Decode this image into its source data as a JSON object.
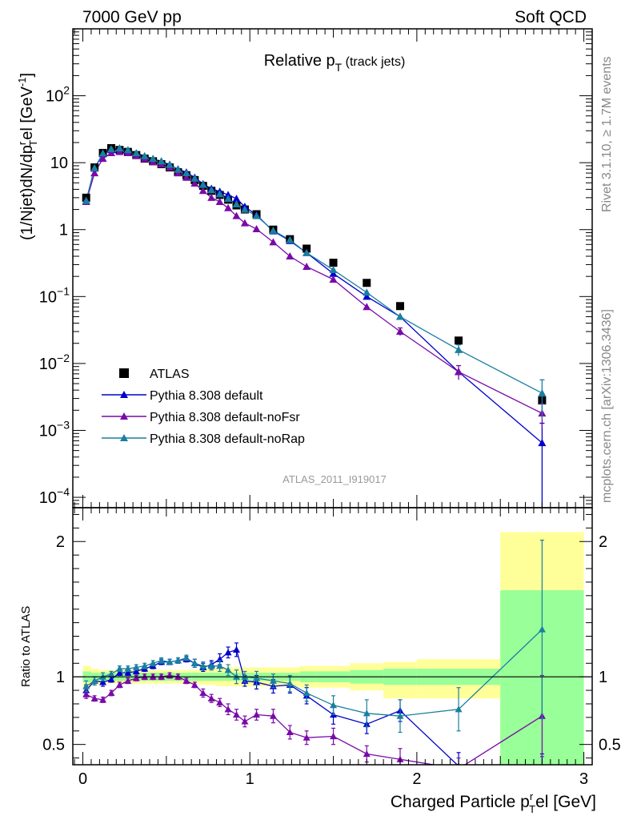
{
  "header": {
    "left": "7000 GeV pp",
    "right": "Soft QCD"
  },
  "side_text": {
    "rivet": "Rivet 3.1.10, ≥ 1.7M events",
    "mcplots": "mcplots.cern.ch [arXiv:1306.3436]"
  },
  "watermark": "ATLAS_2011_I919017",
  "chart_data": [
    {
      "type": "scatter",
      "panel": "main",
      "title": "Relative p",
      "title_sub": "T",
      "title_suffix": " (track jets)",
      "ylabel": "(1/Njet)dN/dp",
      "ylabel_sup": "r",
      "ylabel_sub": "T",
      "ylabel_suffix": "el [GeV",
      "ylabel_unit_sup": "-1",
      "ylabel_close": "]",
      "yscale": "log",
      "xlim": [
        -0.06,
        3.05
      ],
      "ylim": [
        7e-05,
        1000
      ],
      "y_ticks": [
        0.0001,
        0.001,
        0.01,
        0.1,
        1,
        10,
        100
      ],
      "y_tick_labels": [
        {
          "base": "10",
          "exp": "−4"
        },
        {
          "base": "10",
          "exp": "−3"
        },
        {
          "base": "10",
          "exp": "−2"
        },
        {
          "base": "10",
          "exp": "−1"
        },
        {
          "base": "1",
          "exp": ""
        },
        {
          "base": "10",
          "exp": ""
        },
        {
          "base": "10",
          "exp": "2"
        }
      ],
      "legend_position": "bottom-left",
      "series": [
        {
          "name": "ATLAS",
          "color": "#000000",
          "marker": "square",
          "x": [
            0.02,
            0.07,
            0.12,
            0.17,
            0.22,
            0.27,
            0.32,
            0.37,
            0.42,
            0.47,
            0.52,
            0.57,
            0.62,
            0.67,
            0.72,
            0.77,
            0.82,
            0.87,
            0.92,
            0.97,
            1.04,
            1.14,
            1.24,
            1.34,
            1.5,
            1.7,
            1.9,
            2.25,
            2.75
          ],
          "y": [
            3.0,
            8.5,
            14.0,
            16.5,
            15.5,
            14.5,
            13.0,
            11.5,
            10.5,
            9.5,
            8.5,
            7.2,
            6.5,
            5.5,
            4.5,
            3.8,
            3.3,
            2.8,
            2.3,
            2.0,
            1.7,
            1.0,
            0.72,
            0.52,
            0.32,
            0.16,
            0.072,
            0.022,
            0.0028
          ]
        },
        {
          "name": "Pythia 8.308 default",
          "color": "#0000cc",
          "marker": "triangle",
          "x": [
            0.02,
            0.07,
            0.12,
            0.17,
            0.22,
            0.27,
            0.32,
            0.37,
            0.42,
            0.47,
            0.52,
            0.57,
            0.62,
            0.67,
            0.72,
            0.77,
            0.82,
            0.87,
            0.92,
            0.97,
            1.04,
            1.14,
            1.24,
            1.34,
            1.5,
            1.7,
            1.9,
            2.25,
            2.75
          ],
          "y": [
            2.7,
            8.2,
            13.5,
            15.5,
            15.8,
            15.0,
            13.5,
            12.2,
            11.3,
            10.5,
            9.4,
            8.0,
            7.2,
            6.0,
            4.8,
            4.1,
            3.7,
            3.3,
            2.9,
            2.2,
            1.65,
            0.95,
            0.68,
            0.45,
            0.22,
            0.1,
            0.05,
            0.0075,
            0.00065
          ],
          "err": [
            0,
            0,
            0,
            0,
            0,
            0,
            0,
            0,
            0,
            0,
            0,
            0,
            0,
            0,
            0,
            0,
            0,
            0,
            0,
            0,
            0,
            0,
            0,
            0,
            0,
            0,
            0,
            0,
            0.00063
          ]
        },
        {
          "name": "Pythia 8.308 default-noFsr",
          "color": "#7a0aa8",
          "marker": "triangle",
          "x": [
            0.02,
            0.07,
            0.12,
            0.17,
            0.22,
            0.27,
            0.32,
            0.37,
            0.42,
            0.47,
            0.52,
            0.57,
            0.62,
            0.67,
            0.72,
            0.77,
            0.82,
            0.87,
            0.92,
            0.97,
            1.04,
            1.14,
            1.24,
            1.34,
            1.5,
            1.7,
            1.9,
            2.25,
            2.75
          ],
          "y": [
            2.6,
            7.0,
            11.5,
            14.0,
            14.5,
            14.0,
            12.8,
            11.4,
            10.3,
            9.5,
            8.5,
            7.0,
            6.0,
            4.9,
            3.8,
            3.0,
            2.6,
            2.1,
            1.6,
            1.25,
            1.02,
            0.65,
            0.4,
            0.28,
            0.18,
            0.07,
            0.03,
            0.0075,
            0.0018
          ],
          "err": [
            0,
            0,
            0,
            0,
            0,
            0,
            0,
            0,
            0,
            0,
            0,
            0,
            0,
            0,
            0,
            0,
            0,
            0,
            0,
            0,
            0,
            0,
            0,
            0,
            0,
            0,
            0.004,
            0.0018,
            0.0007
          ]
        },
        {
          "name": "Pythia 8.308 default-noRap",
          "color": "#1a7fa0",
          "marker": "triangle",
          "x": [
            0.02,
            0.07,
            0.12,
            0.17,
            0.22,
            0.27,
            0.32,
            0.37,
            0.42,
            0.47,
            0.52,
            0.57,
            0.62,
            0.67,
            0.72,
            0.77,
            0.82,
            0.87,
            0.92,
            0.97,
            1.04,
            1.14,
            1.24,
            1.34,
            1.5,
            1.7,
            1.9,
            2.25,
            2.75
          ],
          "y": [
            2.7,
            8.3,
            13.8,
            16.0,
            16.5,
            15.5,
            14.0,
            12.6,
            11.5,
            10.5,
            9.3,
            7.9,
            7.0,
            5.8,
            4.7,
            3.9,
            3.4,
            2.9,
            2.4,
            2.0,
            1.6,
            0.97,
            0.7,
            0.45,
            0.25,
            0.115,
            0.05,
            0.016,
            0.0036
          ],
          "err": [
            0,
            0,
            0,
            0,
            0,
            0,
            0,
            0,
            0,
            0,
            0,
            0,
            0,
            0,
            0,
            0,
            0,
            0,
            0,
            0,
            0,
            0,
            0,
            0,
            0,
            0,
            0,
            0.003,
            0.0021
          ]
        }
      ]
    },
    {
      "type": "line",
      "panel": "ratio",
      "ylabel": "Ratio to ATLAS",
      "xlabel": "Charged Particle p",
      "xlabel_sup": "r",
      "xlabel_sub": "T",
      "xlabel_suffix": "el [GeV]",
      "xlim": [
        -0.06,
        3.05
      ],
      "ylim": [
        0.35,
        2.25
      ],
      "x_ticks": [
        0,
        1,
        2,
        3
      ],
      "x_tick_labels": [
        "0",
        "1",
        "2",
        "3"
      ],
      "y_ticks": [
        0.5,
        1,
        2
      ],
      "y_tick_labels": [
        "0.5",
        "1",
        "2"
      ],
      "bands": {
        "edges": [
          0.0,
          0.05,
          0.1,
          0.15,
          0.2,
          0.25,
          0.3,
          0.35,
          0.4,
          0.45,
          0.5,
          0.55,
          0.6,
          0.65,
          0.7,
          0.75,
          0.8,
          0.85,
          0.9,
          0.95,
          1.0,
          1.1,
          1.2,
          1.3,
          1.4,
          1.6,
          1.8,
          2.0,
          2.5,
          3.0
        ],
        "stat_lo": [
          0.96,
          0.97,
          0.97,
          0.97,
          0.97,
          0.97,
          0.97,
          0.97,
          0.97,
          0.97,
          0.97,
          0.97,
          0.97,
          0.97,
          0.97,
          0.97,
          0.97,
          0.97,
          0.97,
          0.97,
          0.97,
          0.97,
          0.97,
          0.96,
          0.96,
          0.95,
          0.94,
          0.94,
          0.25
        ],
        "stat_hi": [
          1.04,
          1.03,
          1.03,
          1.03,
          1.03,
          1.03,
          1.03,
          1.03,
          1.03,
          1.03,
          1.03,
          1.03,
          1.03,
          1.03,
          1.03,
          1.03,
          1.03,
          1.03,
          1.03,
          1.03,
          1.03,
          1.03,
          1.03,
          1.04,
          1.04,
          1.05,
          1.06,
          1.06,
          1.64
        ],
        "syst_lo": [
          0.92,
          0.94,
          0.95,
          0.95,
          0.95,
          0.95,
          0.95,
          0.95,
          0.95,
          0.95,
          0.95,
          0.95,
          0.95,
          0.95,
          0.94,
          0.94,
          0.93,
          0.93,
          0.93,
          0.93,
          0.93,
          0.93,
          0.93,
          0.92,
          0.92,
          0.9,
          0.84,
          0.84,
          0.25
        ],
        "syst_hi": [
          1.08,
          1.06,
          1.05,
          1.05,
          1.05,
          1.05,
          1.05,
          1.05,
          1.05,
          1.05,
          1.05,
          1.05,
          1.05,
          1.05,
          1.06,
          1.06,
          1.06,
          1.07,
          1.07,
          1.07,
          1.07,
          1.07,
          1.07,
          1.08,
          1.08,
          1.1,
          1.11,
          1.13,
          2.07
        ],
        "stat_color": "#99ff99",
        "syst_color": "#ffff99"
      },
      "series": [
        {
          "name": "Pythia 8.308 default",
          "color": "#0000cc",
          "x": [
            0.02,
            0.07,
            0.12,
            0.17,
            0.22,
            0.27,
            0.32,
            0.37,
            0.42,
            0.47,
            0.52,
            0.57,
            0.62,
            0.67,
            0.72,
            0.77,
            0.82,
            0.87,
            0.92,
            0.97,
            1.04,
            1.14,
            1.24,
            1.34,
            1.5,
            1.7,
            1.9,
            2.25,
            2.75
          ],
          "y": [
            0.9,
            0.97,
            0.96,
            0.98,
            1.03,
            1.03,
            1.04,
            1.06,
            1.08,
            1.11,
            1.11,
            1.12,
            1.13,
            1.1,
            1.07,
            1.09,
            1.13,
            1.18,
            1.2,
            0.97,
            0.96,
            0.93,
            0.94,
            0.86,
            0.72,
            0.65,
            0.75,
            0.34,
            0.23
          ],
          "err": [
            0.04,
            0.03,
            0.03,
            0.02,
            0.02,
            0.02,
            0.02,
            0.02,
            0.02,
            0.02,
            0.02,
            0.02,
            0.02,
            0.03,
            0.03,
            0.03,
            0.04,
            0.04,
            0.05,
            0.04,
            0.05,
            0.05,
            0.06,
            0.06,
            0.07,
            0.07,
            0.08,
            0.1,
            0.2
          ]
        },
        {
          "name": "Pythia 8.308 default-noFsr",
          "color": "#7a0aa8",
          "x": [
            0.02,
            0.07,
            0.12,
            0.17,
            0.22,
            0.27,
            0.32,
            0.37,
            0.42,
            0.47,
            0.52,
            0.57,
            0.62,
            0.67,
            0.72,
            0.77,
            0.82,
            0.87,
            0.92,
            0.97,
            1.04,
            1.14,
            1.24,
            1.34,
            1.5,
            1.7,
            1.9,
            2.25,
            2.75
          ],
          "y": [
            0.87,
            0.84,
            0.83,
            0.88,
            0.94,
            0.97,
            0.99,
            1.0,
            1.0,
            1.0,
            1.01,
            1.0,
            0.97,
            0.94,
            0.88,
            0.84,
            0.81,
            0.76,
            0.72,
            0.67,
            0.72,
            0.71,
            0.59,
            0.55,
            0.56,
            0.43,
            0.39,
            0.32,
            0.71
          ],
          "err": [
            0.03,
            0.02,
            0.02,
            0.02,
            0.02,
            0.02,
            0.02,
            0.02,
            0.02,
            0.02,
            0.02,
            0.02,
            0.02,
            0.02,
            0.03,
            0.03,
            0.03,
            0.04,
            0.04,
            0.04,
            0.04,
            0.05,
            0.05,
            0.05,
            0.06,
            0.06,
            0.08,
            0.08,
            0.3
          ]
        },
        {
          "name": "Pythia 8.308 default-noRap",
          "color": "#1a7fa0",
          "x": [
            0.02,
            0.07,
            0.12,
            0.17,
            0.22,
            0.27,
            0.32,
            0.37,
            0.42,
            0.47,
            0.52,
            0.57,
            0.62,
            0.67,
            0.72,
            0.77,
            0.82,
            0.87,
            0.92,
            0.97,
            1.04,
            1.14,
            1.24,
            1.34,
            1.5,
            1.7,
            1.9,
            2.25,
            2.75
          ],
          "y": [
            0.93,
            0.97,
            1.0,
            1.02,
            1.06,
            1.06,
            1.07,
            1.08,
            1.1,
            1.12,
            1.11,
            1.12,
            1.14,
            1.1,
            1.08,
            1.08,
            1.08,
            1.05,
            1.0,
            1.0,
            0.99,
            0.97,
            0.95,
            0.88,
            0.79,
            0.73,
            0.71,
            0.76,
            1.35
          ],
          "err": [
            0.04,
            0.03,
            0.03,
            0.02,
            0.02,
            0.02,
            0.02,
            0.02,
            0.02,
            0.02,
            0.02,
            0.02,
            0.02,
            0.03,
            0.03,
            0.03,
            0.04,
            0.04,
            0.05,
            0.04,
            0.05,
            0.05,
            0.06,
            0.06,
            0.07,
            0.1,
            0.12,
            0.16,
            0.66
          ]
        }
      ]
    }
  ]
}
